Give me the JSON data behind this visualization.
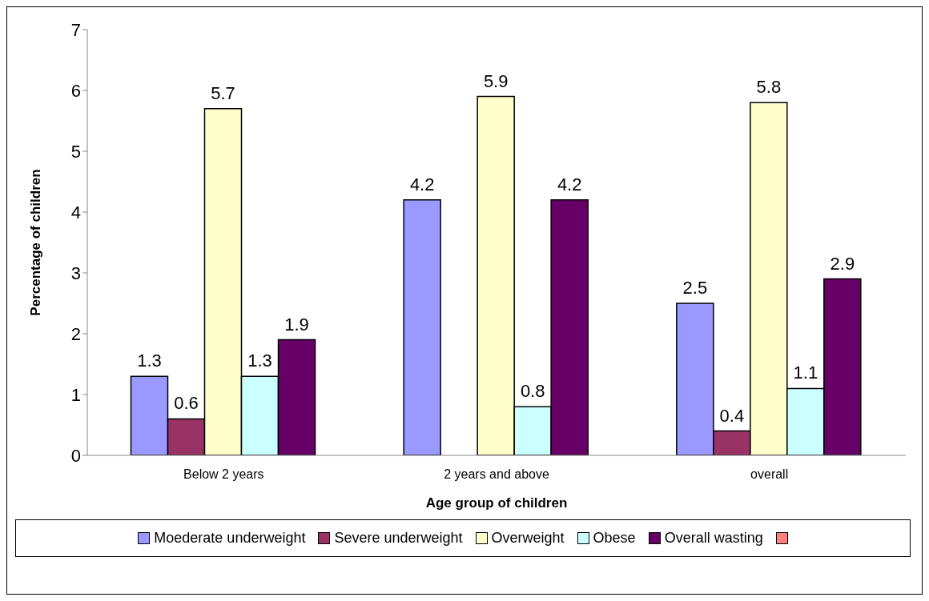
{
  "chart_data": {
    "type": "bar",
    "xlabel": "Age group of children",
    "ylabel": "Percentage of children",
    "categories": [
      "Below 2 years",
      "2 years and above",
      "overall"
    ],
    "series": [
      {
        "name": "Moederate underweight",
        "color": "#9999ff",
        "values": [
          1.3,
          4.2,
          2.5
        ]
      },
      {
        "name": "Severe underweight",
        "color": "#993366",
        "values": [
          0.6,
          null,
          0.4
        ]
      },
      {
        "name": "Overweight",
        "color": "#ffffcc",
        "values": [
          5.7,
          5.9,
          5.8
        ]
      },
      {
        "name": "Obese",
        "color": "#ccffff",
        "values": [
          1.3,
          0.8,
          1.1
        ]
      },
      {
        "name": "Overall wasting",
        "color": "#660066",
        "values": [
          1.9,
          4.2,
          2.9
        ]
      }
    ],
    "ylim": [
      0,
      7
    ],
    "yticks": [
      0,
      1,
      2,
      3,
      4,
      5,
      6,
      7
    ],
    "grid": false,
    "legend": "bottom",
    "data_labels": true
  }
}
